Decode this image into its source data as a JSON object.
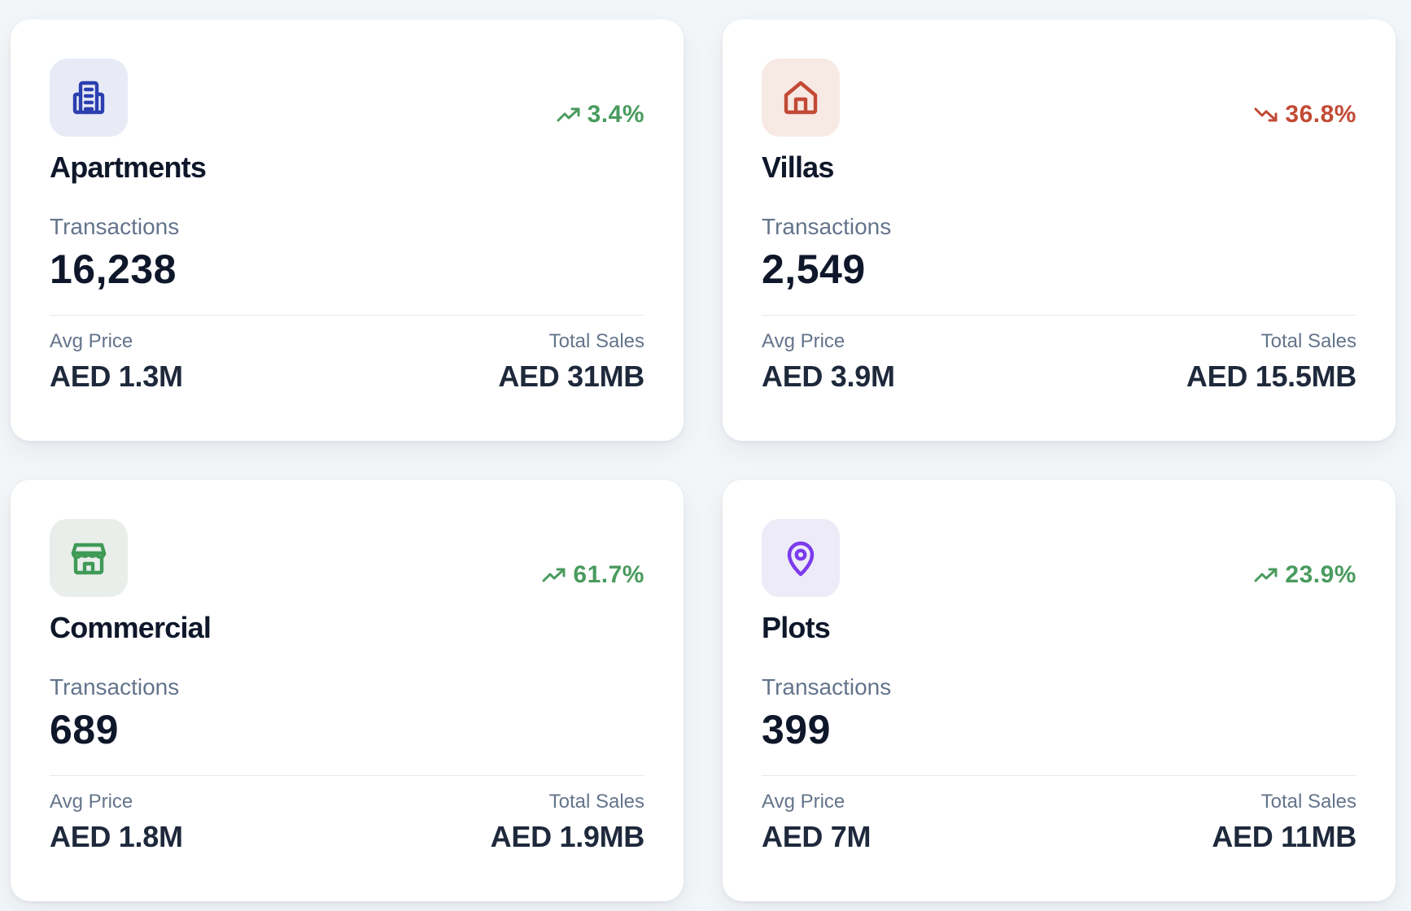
{
  "colors": {
    "up": "#4a9b5e",
    "down": "#c24a35",
    "title": "#0f172a",
    "muted": "#64748b"
  },
  "labels": {
    "transactions": "Transactions",
    "avg_price": "Avg Price",
    "total_sales": "Total Sales"
  },
  "cards": [
    {
      "title": "Apartments",
      "icon": "building-icon",
      "icon_color": "#2b3fb0",
      "icon_bg": "#e8eaf6",
      "trend_direction": "up",
      "trend": "3.4%",
      "transactions": "16,238",
      "avg_price": "AED 1.3M",
      "total_sales": "AED 31MB"
    },
    {
      "title": "Villas",
      "icon": "house-icon",
      "icon_color": "#c24a35",
      "icon_bg": "#f7e9e4",
      "trend_direction": "down",
      "trend": "36.8%",
      "transactions": "2,549",
      "avg_price": "AED 3.9M",
      "total_sales": "AED 15.5MB"
    },
    {
      "title": "Commercial",
      "icon": "store-icon",
      "icon_color": "#3e9a55",
      "icon_bg": "#e9eeeb",
      "trend_direction": "up",
      "trend": "61.7%",
      "transactions": "689",
      "avg_price": "AED 1.8M",
      "total_sales": "AED 1.9MB"
    },
    {
      "title": "Plots",
      "icon": "map-pin-icon",
      "icon_color": "#7c3aed",
      "icon_bg": "#ecebf7",
      "trend_direction": "up",
      "trend": "23.9%",
      "transactions": "399",
      "avg_price": "AED 7M",
      "total_sales": "AED 11MB"
    }
  ]
}
